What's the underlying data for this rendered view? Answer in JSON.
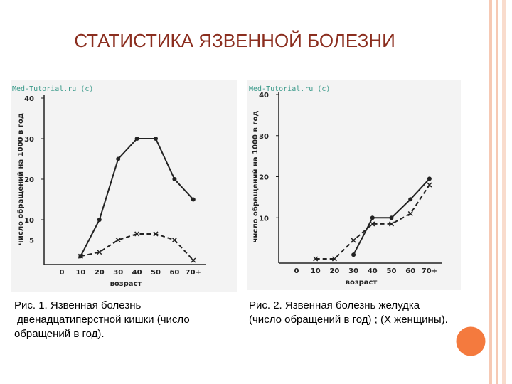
{
  "slide_title": "СТАТИСТИКА ЯЗВЕННОЙ БОЛЕЗНИ",
  "chart_data": [
    {
      "type": "line",
      "watermark": "Med-Tutorial.ru (c)",
      "y_label": "число обращений на 1000 в год",
      "x_label": "возраст",
      "categories": [
        "0",
        "10",
        "20",
        "30",
        "40",
        "50",
        "60",
        "70+"
      ],
      "series": [
        {
          "color": "#222222",
          "line_style": "solid",
          "marker": "dot",
          "values": [
            null,
            1,
            10,
            25,
            30,
            30,
            20,
            15
          ]
        },
        {
          "color": "#222222",
          "line_style": "dashed",
          "marker": "x",
          "values": [
            null,
            1,
            2,
            5,
            6.5,
            6.5,
            5,
            0
          ]
        }
      ],
      "ylim": [
        0,
        40
      ],
      "yticks": [
        5,
        10,
        20,
        30,
        40
      ],
      "caption": [
        "Рис. 1. Язвенная болезнь",
        " двенадцатиперстной кишки (число",
        "обращений в год)."
      ]
    },
    {
      "type": "line",
      "watermark": "Med-Tutorial.ru (c)",
      "y_label": "число обращений на 1000 в год",
      "x_label": "возраст",
      "categories": [
        "0",
        "10",
        "20",
        "30",
        "40",
        "50",
        "60",
        "70+"
      ],
      "series": [
        {
          "color": "#222222",
          "line_style": "solid",
          "marker": "dot",
          "values": [
            null,
            null,
            null,
            1,
            10,
            10,
            14.5,
            19.5
          ]
        },
        {
          "color": "#222222",
          "line_style": "dashed",
          "marker": "x",
          "values": [
            null,
            0,
            0,
            4.5,
            8.5,
            8.5,
            11,
            18
          ]
        }
      ],
      "ylim": [
        0,
        40
      ],
      "yticks": [
        10,
        20,
        30,
        40
      ],
      "caption": [
        "Рис. 2. Язвенная болезнь желудка",
        "(число обращений в год) ; (Х женщины)."
      ]
    }
  ]
}
